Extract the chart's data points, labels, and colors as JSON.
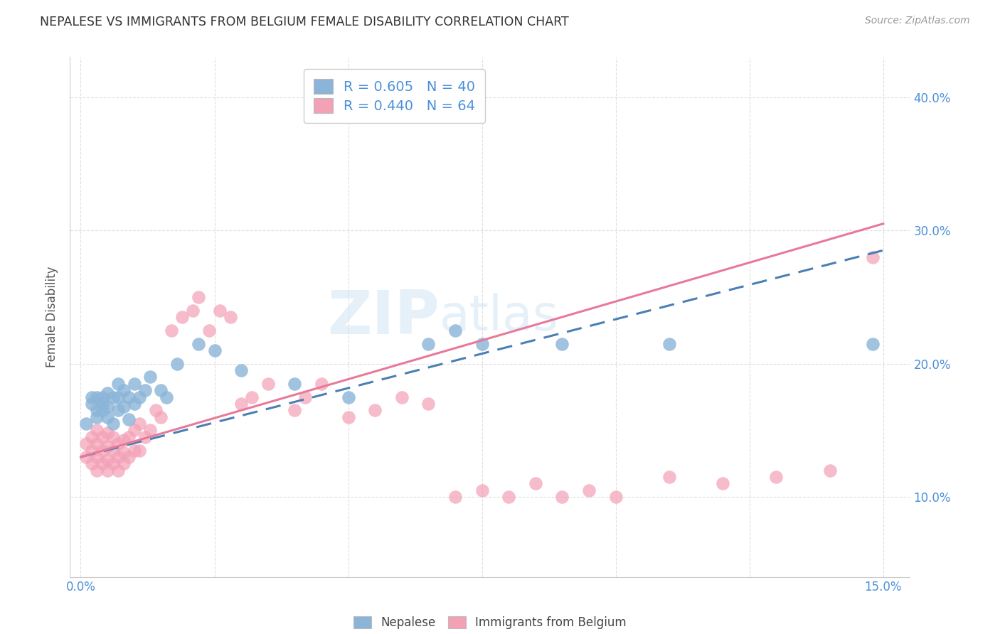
{
  "title": "NEPALESE VS IMMIGRANTS FROM BELGIUM FEMALE DISABILITY CORRELATION CHART",
  "source": "Source: ZipAtlas.com",
  "ylabel": "Female Disability",
  "xlim": [
    -0.002,
    0.155
  ],
  "ylim": [
    0.04,
    0.43
  ],
  "xticks": [
    0.0,
    0.025,
    0.05,
    0.075,
    0.1,
    0.125,
    0.15
  ],
  "xtick_labels": [
    "0.0%",
    "",
    "",
    "",
    "",
    "",
    "15.0%"
  ],
  "yticks": [
    0.1,
    0.2,
    0.3,
    0.4
  ],
  "ytick_labels": [
    "10.0%",
    "20.0%",
    "30.0%",
    "40.0%"
  ],
  "nepalese_R": 0.605,
  "nepalese_N": 40,
  "belgium_R": 0.44,
  "belgium_N": 64,
  "nepalese_color": "#8ab4d8",
  "belgium_color": "#f4a0b5",
  "nepalese_line_color": "#4a7fb5",
  "belgium_line_color": "#e8799a",
  "legend_label1": "Nepalese",
  "legend_label2": "Immigrants from Belgium",
  "watermark_zip": "ZIP",
  "watermark_atlas": "atlas",
  "tick_color": "#4a90d9",
  "grid_color": "#d8d8d8",
  "title_color": "#333333",
  "source_color": "#999999",
  "ylabel_color": "#555555",
  "nepalese_x": [
    0.001,
    0.002,
    0.002,
    0.003,
    0.003,
    0.003,
    0.004,
    0.004,
    0.004,
    0.005,
    0.005,
    0.005,
    0.006,
    0.006,
    0.007,
    0.007,
    0.007,
    0.008,
    0.008,
    0.009,
    0.009,
    0.01,
    0.01,
    0.011,
    0.012,
    0.013,
    0.015,
    0.016,
    0.018,
    0.022,
    0.025,
    0.03,
    0.04,
    0.05,
    0.065,
    0.07,
    0.075,
    0.09,
    0.11,
    0.148
  ],
  "nepalese_y": [
    0.155,
    0.17,
    0.175,
    0.16,
    0.165,
    0.175,
    0.165,
    0.17,
    0.175,
    0.16,
    0.168,
    0.178,
    0.155,
    0.175,
    0.165,
    0.175,
    0.185,
    0.168,
    0.18,
    0.158,
    0.175,
    0.17,
    0.185,
    0.175,
    0.18,
    0.19,
    0.18,
    0.175,
    0.2,
    0.215,
    0.21,
    0.195,
    0.185,
    0.175,
    0.215,
    0.225,
    0.215,
    0.215,
    0.215,
    0.215
  ],
  "belgium_x": [
    0.001,
    0.001,
    0.002,
    0.002,
    0.002,
    0.003,
    0.003,
    0.003,
    0.003,
    0.004,
    0.004,
    0.004,
    0.005,
    0.005,
    0.005,
    0.005,
    0.006,
    0.006,
    0.006,
    0.007,
    0.007,
    0.007,
    0.008,
    0.008,
    0.008,
    0.009,
    0.009,
    0.01,
    0.01,
    0.011,
    0.011,
    0.012,
    0.013,
    0.014,
    0.015,
    0.017,
    0.019,
    0.021,
    0.022,
    0.024,
    0.026,
    0.028,
    0.03,
    0.032,
    0.035,
    0.04,
    0.042,
    0.045,
    0.05,
    0.055,
    0.06,
    0.065,
    0.07,
    0.075,
    0.08,
    0.085,
    0.09,
    0.095,
    0.1,
    0.11,
    0.12,
    0.13,
    0.14,
    0.148
  ],
  "belgium_y": [
    0.13,
    0.14,
    0.125,
    0.135,
    0.145,
    0.12,
    0.13,
    0.14,
    0.15,
    0.125,
    0.135,
    0.145,
    0.12,
    0.128,
    0.138,
    0.148,
    0.125,
    0.135,
    0.145,
    0.12,
    0.13,
    0.14,
    0.125,
    0.133,
    0.143,
    0.13,
    0.145,
    0.135,
    0.15,
    0.135,
    0.155,
    0.145,
    0.15,
    0.165,
    0.16,
    0.225,
    0.235,
    0.24,
    0.25,
    0.225,
    0.24,
    0.235,
    0.17,
    0.175,
    0.185,
    0.165,
    0.175,
    0.185,
    0.16,
    0.165,
    0.175,
    0.17,
    0.1,
    0.105,
    0.1,
    0.11,
    0.1,
    0.105,
    0.1,
    0.115,
    0.11,
    0.115,
    0.12,
    0.28
  ]
}
